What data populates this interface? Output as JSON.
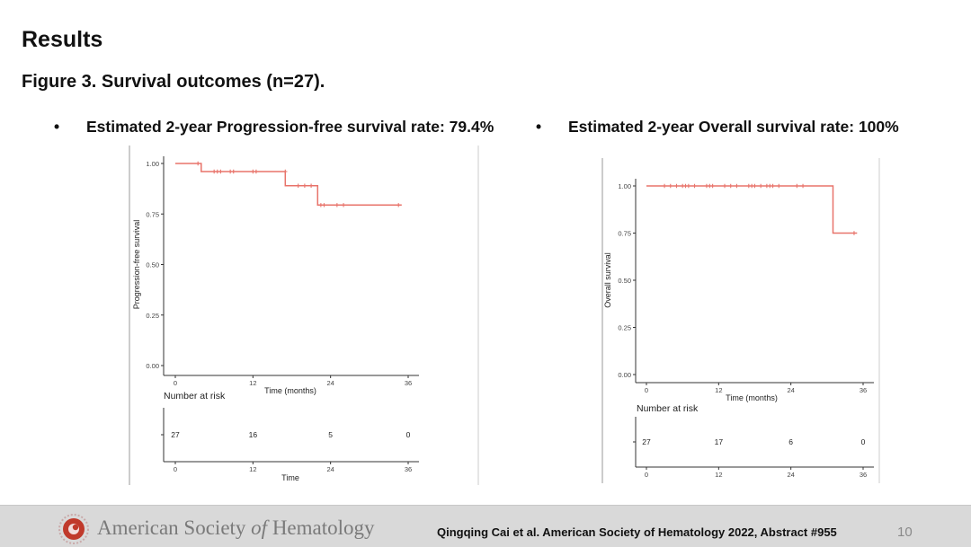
{
  "slide": {
    "heading": "Results",
    "subheading": "Figure 3. Survival outcomes (n=27).",
    "bullets": [
      "Estimated 2-year Progression-free survival rate: 79.4%",
      "Estimated 2-year Overall survival  rate: 100%"
    ],
    "bullet_symbol": "•"
  },
  "footer": {
    "org_name_pre": "American Society ",
    "org_name_of": "of",
    "org_name_post": " Hematology",
    "citation": "Qingqing Cai et al. American Society of Hematology 2022, Abstract #955",
    "page_number": "10",
    "logo_icon": "ash-logo-icon",
    "logo_color": "#c0392b",
    "band_color": "#d9d9d9"
  },
  "chart_data": [
    {
      "type": "line",
      "step": true,
      "series": [
        {
          "x": [
            0,
            4,
            4,
            17,
            17,
            22,
            22,
            35
          ],
          "y": [
            1.0,
            1.0,
            0.96,
            0.96,
            0.89,
            0.89,
            0.794,
            0.794
          ],
          "color": "#e8736a",
          "censor_x": [
            3.5,
            6,
            6.5,
            7,
            8.5,
            9,
            12,
            12.5,
            17,
            19,
            20,
            21,
            22.5,
            23,
            25,
            26,
            34.5
          ],
          "censor_y": [
            1.0,
            0.96,
            0.96,
            0.96,
            0.96,
            0.96,
            0.96,
            0.96,
            0.96,
            0.89,
            0.89,
            0.89,
            0.794,
            0.794,
            0.794,
            0.794,
            0.794
          ]
        }
      ],
      "title": "",
      "xlabel": "Time (months)",
      "ylabel": "Progression-free survival",
      "xlim": [
        0,
        36
      ],
      "ylim": [
        0,
        1
      ],
      "xticks": [
        "0",
        "12",
        "24",
        "36"
      ],
      "yticks": [
        "0.00",
        "0.25",
        "0.50",
        "0.75",
        "1.00"
      ],
      "risk_table": {
        "title": "Number at risk",
        "values": [
          "27",
          "16",
          "5",
          "0"
        ],
        "xlabel": "Time",
        "xticks": [
          "0",
          "12",
          "24",
          "36"
        ]
      },
      "grid": false
    },
    {
      "type": "line",
      "step": true,
      "series": [
        {
          "x": [
            0,
            31,
            31,
            35
          ],
          "y": [
            1.0,
            1.0,
            0.75,
            0.75
          ],
          "color": "#e8736a",
          "censor_x": [
            3,
            4,
            5,
            6,
            6.5,
            7,
            8,
            10,
            10.5,
            11,
            13,
            14,
            15,
            17,
            17.5,
            18,
            19,
            20,
            20.5,
            21,
            22,
            25,
            26,
            34.5
          ],
          "censor_y": [
            1.0,
            1.0,
            1.0,
            1.0,
            1.0,
            1.0,
            1.0,
            1.0,
            1.0,
            1.0,
            1.0,
            1.0,
            1.0,
            1.0,
            1.0,
            1.0,
            1.0,
            1.0,
            1.0,
            1.0,
            1.0,
            1.0,
            1.0,
            0.75
          ]
        }
      ],
      "title": "",
      "xlabel": "Time (months)",
      "ylabel": "Overall survival",
      "xlim": [
        0,
        36
      ],
      "ylim": [
        0,
        1
      ],
      "xticks": [
        "0",
        "12",
        "24",
        "36"
      ],
      "yticks": [
        "0.00",
        "0.25",
        "0.50",
        "0.75",
        "1.00"
      ],
      "risk_table": {
        "title": "Number at risk",
        "values": [
          "27",
          "17",
          "6",
          "0"
        ],
        "xlabel": "",
        "xticks": [
          "0",
          "12",
          "24",
          "36"
        ]
      },
      "grid": false
    }
  ]
}
